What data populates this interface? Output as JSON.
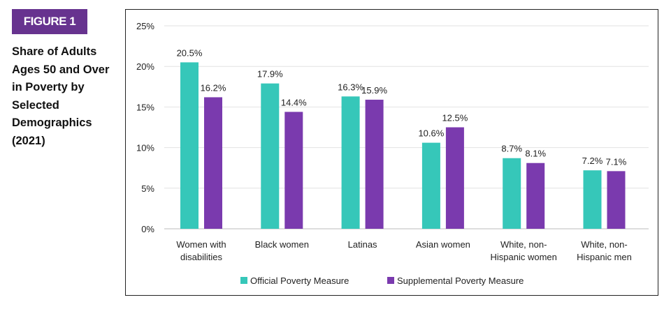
{
  "badge": "FIGURE 1",
  "title": "Share of Adults Ages 50 and Over in Poverty by Selected Demographics (2021)",
  "chart_data": {
    "type": "bar",
    "categories": [
      [
        "Women with",
        "disabilities"
      ],
      [
        "Black women"
      ],
      [
        "Latinas"
      ],
      [
        "Asian women"
      ],
      [
        "White, non-",
        "Hispanic women"
      ],
      [
        "White, non-",
        "Hispanic men"
      ]
    ],
    "series": [
      {
        "name": "Official Poverty Measure",
        "color": "#36c7b9",
        "values": [
          20.5,
          17.9,
          16.3,
          10.6,
          8.7,
          7.2
        ],
        "labels": [
          "20.5%",
          "17.9%",
          "16.3%",
          "10.6%",
          "8.7%",
          "7.2%"
        ]
      },
      {
        "name": "Supplemental Poverty Measure",
        "color": "#7a3aae",
        "values": [
          16.2,
          14.4,
          15.9,
          12.5,
          8.1,
          7.1
        ],
        "labels": [
          "16.2%",
          "14.4%",
          "15.9%",
          "12.5%",
          "8.1%",
          "7.1%"
        ]
      }
    ],
    "yticks": [
      "0%",
      "5%",
      "10%",
      "15%",
      "20%",
      "25%"
    ],
    "ylim": [
      0,
      25
    ],
    "grid": true,
    "legend": "bottom"
  }
}
